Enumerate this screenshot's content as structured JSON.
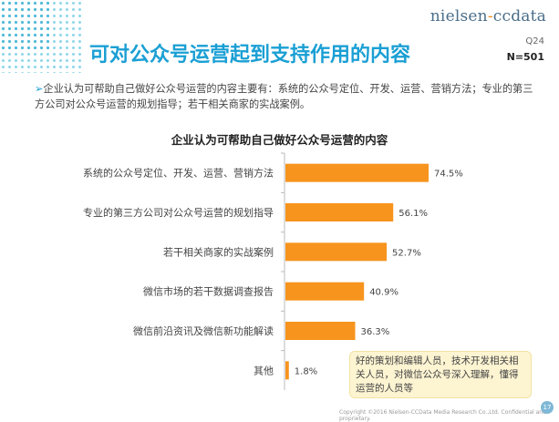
{
  "brand": {
    "logo_text_a": "nielsen",
    "logo_dash": "-",
    "logo_text_b": "ccdata"
  },
  "header": {
    "title": "可对公众号运营起到支持作用的内容",
    "question_code": "Q24",
    "sample_size": "N=501"
  },
  "summary": {
    "bullet": "➢",
    "text": "企业认为可帮助自己做好公众号运营的内容主要有：系统的公众号定位、开发、运营、营销方法；专业的第三方公司对公众号运营的规划指导；若干相关商家的实战案例。"
  },
  "chart_data": {
    "type": "bar",
    "orientation": "horizontal",
    "title": "企业认为可帮助自己做好公众号运营的内容",
    "categories": [
      "系统的公众号定位、开发、运营、营销方法",
      "专业的第三方公司对公众号运营的规划指导",
      "若干相关商家的实战案例",
      "微信市场的若干数据调查报告",
      "微信前沿资讯及微信新功能解读",
      "其他"
    ],
    "values": [
      74.5,
      56.1,
      52.7,
      40.9,
      36.3,
      1.8
    ],
    "value_labels": [
      "74.5%",
      "56.1%",
      "52.7%",
      "40.9%",
      "36.3%",
      "1.8%"
    ],
    "unit": "%",
    "xlim": [
      0,
      80
    ],
    "bar_color": "#f7941d",
    "grid": false,
    "legend": "none"
  },
  "annotation": {
    "text": "好的策划和编辑人员，技术开发相关相关人员，对微信公众号深入理解，懂得运营的人员等"
  },
  "footer": {
    "copyright": "Copyright ©2016  Nielsen-CCData Media Research Co.,Ltd. Confidential and proprietary.",
    "page_number": "17"
  },
  "colors": {
    "title": "#1a9fd4",
    "bar": "#f7941d",
    "note_bg": "#fdf4d2"
  }
}
